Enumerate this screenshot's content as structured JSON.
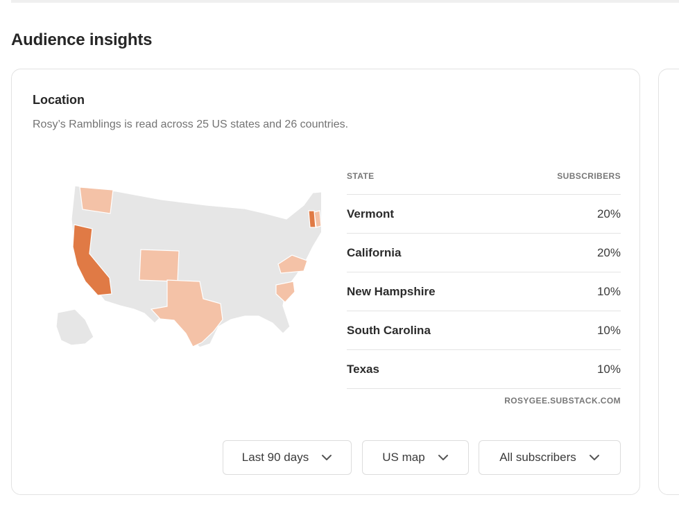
{
  "section": {
    "title": "Audience insights"
  },
  "location": {
    "title": "Location",
    "subtitle": "Rosy’s Ramblings is read across 25 US states and 26 countries.",
    "table": {
      "col_state": "STATE",
      "col_subscribers": "SUBSCRIBERS",
      "rows": [
        {
          "state": "Vermont",
          "share": "20%"
        },
        {
          "state": "California",
          "share": "20%"
        },
        {
          "state": "New Hampshire",
          "share": "10%"
        },
        {
          "state": "South Carolina",
          "share": "10%"
        },
        {
          "state": "Texas",
          "share": "10%"
        }
      ],
      "footer": "ROSYGEE.SUBSTACK.COM"
    },
    "map": {
      "highlighted_strong": [
        "Vermont",
        "California"
      ],
      "highlighted_light": [
        "Washington",
        "Colorado",
        "Texas",
        "Virginia",
        "South Carolina",
        "New Hampshire"
      ],
      "colors": {
        "strong": "#e07a45",
        "light": "#f4c2a7",
        "base": "#e5e5e5"
      }
    },
    "filters": {
      "period": "Last 90 days",
      "view": "US map",
      "audience": "All subscribers"
    }
  }
}
